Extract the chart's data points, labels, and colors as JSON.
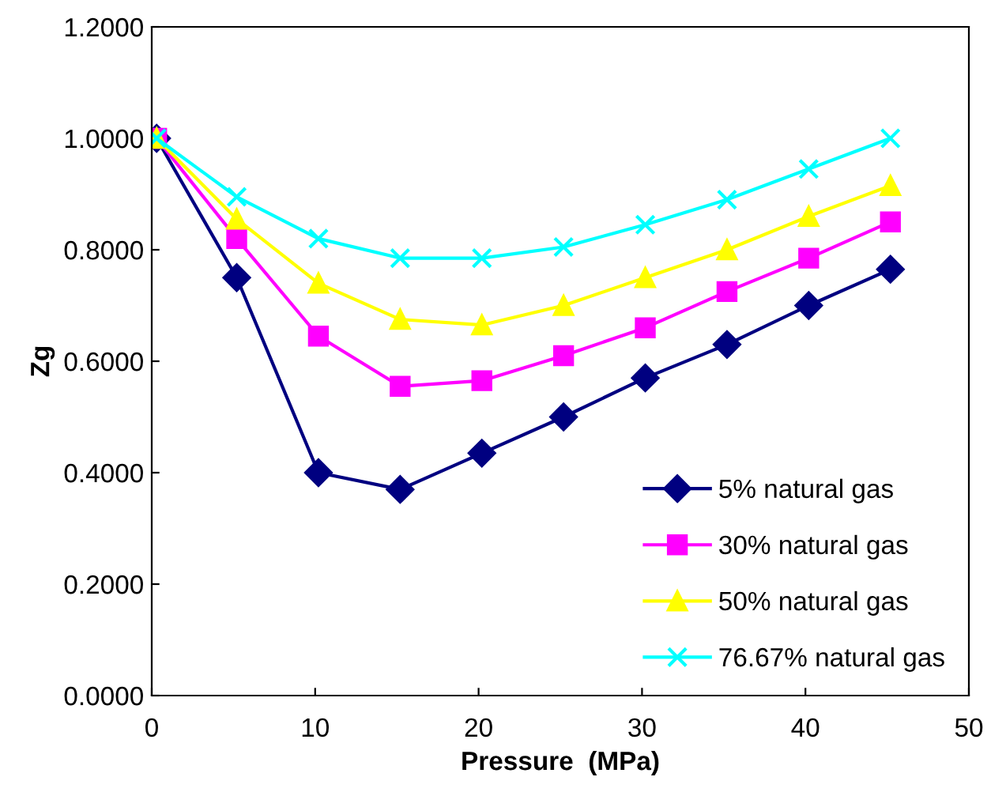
{
  "chart_data": {
    "type": "line",
    "xlabel": "Pressure  (MPa)",
    "ylabel": "Zg",
    "x": [
      0.3,
      5.2,
      10.2,
      15.2,
      20.2,
      25.2,
      30.2,
      35.2,
      40.2,
      45.2
    ],
    "series": [
      {
        "name": "5% natural gas",
        "color": "#000080",
        "marker": "diamond",
        "values": [
          1.0,
          0.75,
          0.4,
          0.37,
          0.435,
          0.5,
          0.57,
          0.63,
          0.7,
          0.765
        ]
      },
      {
        "name": "30% natural gas",
        "color": "#ff00ff",
        "marker": "square",
        "values": [
          1.0,
          0.82,
          0.645,
          0.555,
          0.565,
          0.61,
          0.66,
          0.725,
          0.785,
          0.85
        ]
      },
      {
        "name": "50% natural gas",
        "color": "#ffff00",
        "marker": "triangle",
        "values": [
          1.0,
          0.855,
          0.74,
          0.675,
          0.665,
          0.7,
          0.75,
          0.8,
          0.86,
          0.915
        ]
      },
      {
        "name": "76.67% natural gas",
        "color": "#00ffff",
        "marker": "cross",
        "values": [
          1.0,
          0.895,
          0.82,
          0.785,
          0.785,
          0.805,
          0.845,
          0.89,
          0.945,
          1.0
        ]
      }
    ],
    "xlim": [
      0,
      50
    ],
    "xticks": [
      0,
      10,
      20,
      30,
      40,
      50
    ],
    "ylim": [
      0,
      1.2
    ],
    "yticks": [
      {
        "value": 0,
        "label": "0.0000"
      },
      {
        "value": 0.2,
        "label": "0.2000"
      },
      {
        "value": 0.4,
        "label": "0.4000"
      },
      {
        "value": 0.6,
        "label": "0.6000"
      },
      {
        "value": 0.8,
        "label": "0.8000"
      },
      {
        "value": 1.0,
        "label": "1.0000"
      },
      {
        "value": 1.2,
        "label": "1.2000"
      }
    ],
    "grid": false,
    "legend": "bottom right",
    "line_style": "solid"
  }
}
